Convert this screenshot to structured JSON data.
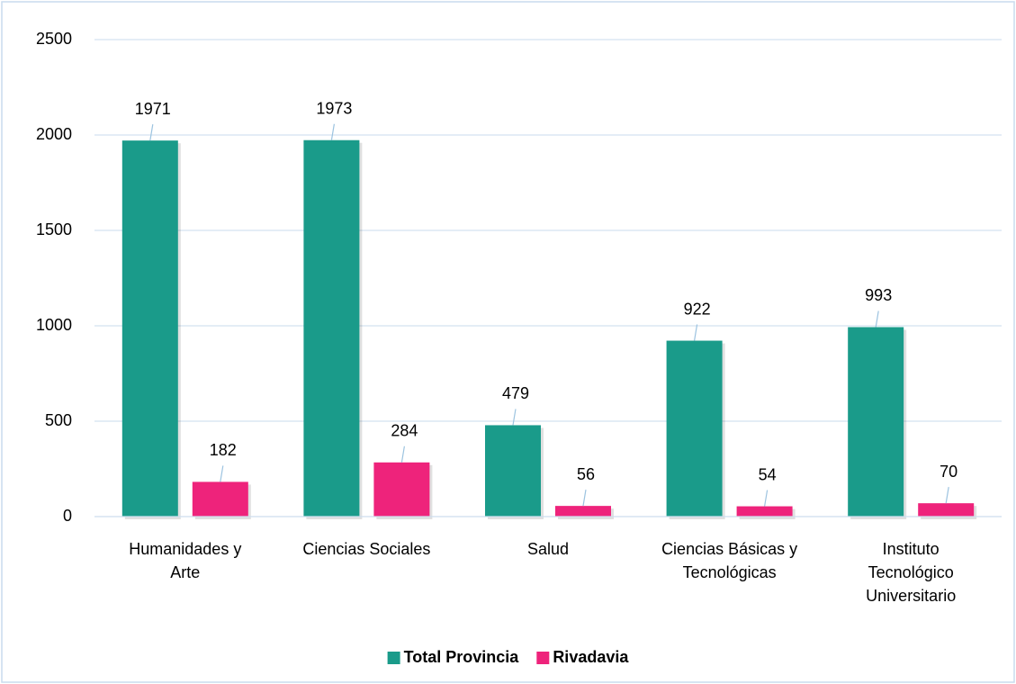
{
  "chart_data": {
    "type": "bar",
    "categories": [
      "Humanidades y\nArte",
      "Ciencias Sociales",
      "Salud",
      "Ciencias Básicas y\nTecnológicas",
      "Instituto\nTecnológico\nUniversitario"
    ],
    "series": [
      {
        "name": "Total Provincia",
        "color": "#1a9b8a",
        "values": [
          1971,
          1973,
          479,
          922,
          993
        ]
      },
      {
        "name": "Rivadavia",
        "color": "#ee237b",
        "values": [
          182,
          284,
          56,
          54,
          70
        ]
      }
    ],
    "ylim": [
      0,
      2500
    ],
    "yticks": [
      0,
      500,
      1000,
      1500,
      2000,
      2500
    ],
    "grid": true,
    "legend": "bottom"
  }
}
